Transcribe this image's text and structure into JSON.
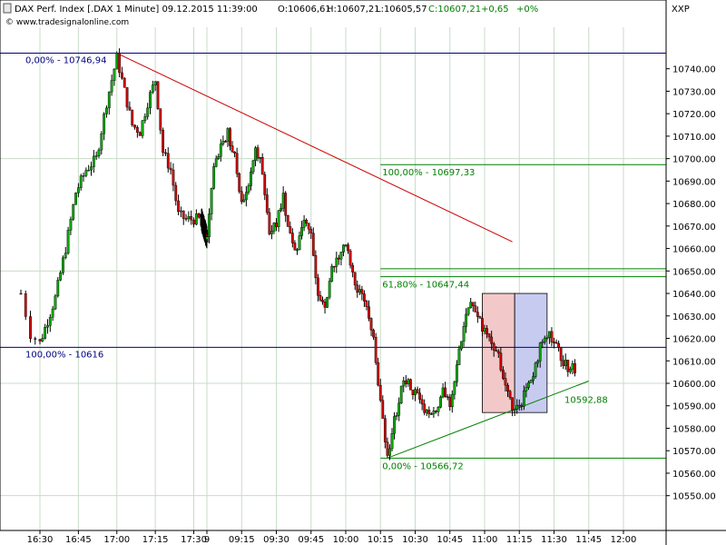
{
  "header": {
    "symbol": "DAX Perf. Index [.DAX  1 Minute] 09.12.2015 11:39:00",
    "open": "O:10606,61",
    "high": "H:10607,21",
    "low": "L:10605,57",
    "close": "C:10607,21",
    "change": "+0,65",
    "change_pct": "+0%",
    "watermark": "© www.tradesignalonline.com",
    "exchange": "XXP"
  },
  "colors": {
    "up": "#00aa00",
    "down": "#d00000",
    "candle_outline": "#000000",
    "hline": "#000080",
    "fib": "#008000",
    "trend_down": "#cc0000",
    "trend_up": "#008000",
    "box_red": "#f2c8c8",
    "box_blue": "#c8cbf0",
    "grid": "#c8dcc8"
  },
  "chart_data": {
    "type": "candlestick",
    "title": "DAX Perf. Index [.DAX  1 Minute]",
    "ylim": [
      10543,
      10752
    ],
    "y_ticks": [
      10550,
      10560,
      10570,
      10580,
      10590,
      10600,
      10610,
      10620,
      10630,
      10640,
      10650,
      10660,
      10670,
      10680,
      10690,
      10700,
      10710,
      10720,
      10730,
      10740
    ],
    "x_ticks": [
      "16:30",
      "16:45",
      "17:00",
      "17:15",
      "17:30",
      "9",
      "09:15",
      "09:30",
      "09:45",
      "10:00",
      "10:15",
      "10:30",
      "10:45",
      "11:00",
      "11:15",
      "11:30",
      "11:45",
      "12:00"
    ],
    "close_path": [
      [
        "16:26",
        10640
      ],
      [
        "16:28",
        10622
      ],
      [
        "16:30",
        10618
      ],
      [
        "16:33",
        10628
      ],
      [
        "16:36",
        10638
      ],
      [
        "16:40",
        10660
      ],
      [
        "16:44",
        10685
      ],
      [
        "16:48",
        10695
      ],
      [
        "16:52",
        10700
      ],
      [
        "16:56",
        10725
      ],
      [
        "17:00",
        10745
      ],
      [
        "17:03",
        10730
      ],
      [
        "17:06",
        10715
      ],
      [
        "17:09",
        10712
      ],
      [
        "17:12",
        10725
      ],
      [
        "17:15",
        10735
      ],
      [
        "17:18",
        10703
      ],
      [
        "17:21",
        10695
      ],
      [
        "17:24",
        10675
      ],
      [
        "17:27",
        10673
      ],
      [
        "17:30",
        10673
      ],
      [
        "17:33",
        10673
      ],
      [
        "09:00",
        10665
      ],
      [
        "09:03",
        10695
      ],
      [
        "09:06",
        10705
      ],
      [
        "09:09",
        10712
      ],
      [
        "09:12",
        10700
      ],
      [
        "09:15",
        10680
      ],
      [
        "09:18",
        10690
      ],
      [
        "09:21",
        10705
      ],
      [
        "09:24",
        10695
      ],
      [
        "09:27",
        10668
      ],
      [
        "09:30",
        10672
      ],
      [
        "09:33",
        10683
      ],
      [
        "09:36",
        10665
      ],
      [
        "09:39",
        10660
      ],
      [
        "09:42",
        10672
      ],
      [
        "09:45",
        10665
      ],
      [
        "09:48",
        10640
      ],
      [
        "09:51",
        10635
      ],
      [
        "09:54",
        10650
      ],
      [
        "09:57",
        10655
      ],
      [
        "10:00",
        10662
      ],
      [
        "10:03",
        10648
      ],
      [
        "10:06",
        10640
      ],
      [
        "10:09",
        10632
      ],
      [
        "10:12",
        10622
      ],
      [
        "10:15",
        10590
      ],
      [
        "10:18",
        10568
      ],
      [
        "10:21",
        10583
      ],
      [
        "10:24",
        10598
      ],
      [
        "10:27",
        10600
      ],
      [
        "10:30",
        10596
      ],
      [
        "10:33",
        10590
      ],
      [
        "10:36",
        10585
      ],
      [
        "10:39",
        10588
      ],
      [
        "10:42",
        10597
      ],
      [
        "10:45",
        10592
      ],
      [
        "10:48",
        10608
      ],
      [
        "10:51",
        10625
      ],
      [
        "10:54",
        10637
      ],
      [
        "10:57",
        10632
      ],
      [
        "11:00",
        10622
      ],
      [
        "11:03",
        10618
      ],
      [
        "11:06",
        10613
      ],
      [
        "11:09",
        10598
      ],
      [
        "11:12",
        10590
      ],
      [
        "11:15",
        10588
      ],
      [
        "11:18",
        10598
      ],
      [
        "11:21",
        10605
      ],
      [
        "11:24",
        10616
      ],
      [
        "11:27",
        10622
      ],
      [
        "11:30",
        10620
      ],
      [
        "11:33",
        10612
      ],
      [
        "11:36",
        10606
      ],
      [
        "11:39",
        10607
      ]
    ],
    "horizontal_lines": [
      {
        "label": "0,00% - 10746,94",
        "value": 10746.94,
        "color": "hline"
      },
      {
        "label": "100,00% - 10616",
        "value": 10616,
        "color": "hline"
      }
    ],
    "fibonacci": {
      "levels": [
        {
          "label": "100,00% - 10697,33",
          "value": 10697.33
        },
        {
          "label": "61,80% - 10647,44",
          "value": 10647.44
        },
        {
          "label": "0,00% - 10566,72",
          "value": 10566.72
        }
      ],
      "extra_line": 10651
    },
    "trendlines": [
      {
        "from": [
          "17:00",
          10746.94
        ],
        "to": [
          "11:12",
          10663
        ],
        "color": "trend_down"
      },
      {
        "from": [
          "10:18",
          10566.72
        ],
        "to": [
          "11:45",
          10601
        ],
        "color": "trend_up"
      }
    ],
    "boxes": [
      {
        "from": "10:59",
        "to": "11:13",
        "high": 10640,
        "low": 10587,
        "color": "box_red"
      },
      {
        "from": "11:13",
        "to": "11:27",
        "high": 10640,
        "low": 10587,
        "color": "box_blue"
      }
    ],
    "annotations": [
      {
        "text": "10592,88",
        "value": 10592.88
      }
    ]
  }
}
